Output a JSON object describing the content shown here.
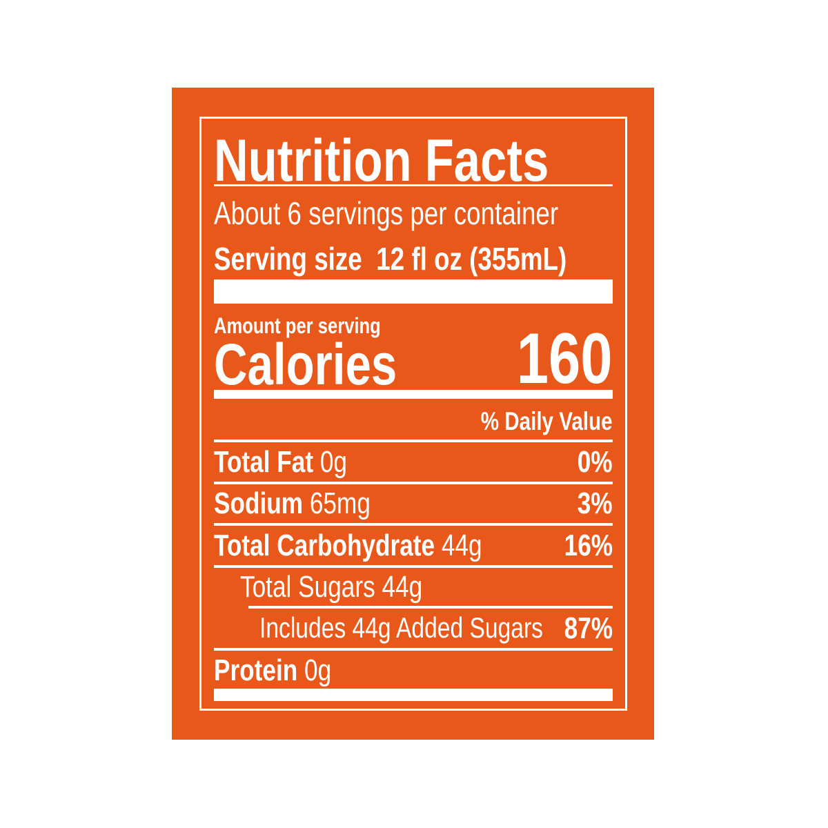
{
  "label": {
    "title": "Nutrition Facts",
    "servings_per_container": "About 6 servings per container",
    "serving_size_label": "Serving size",
    "serving_size_value": "12 fl oz (355mL)",
    "amount_per_serving": "Amount per serving",
    "calories_label": "Calories",
    "calories_value": "160",
    "daily_value_header": "% Daily Value",
    "nutrients": [
      {
        "name": "Total Fat",
        "amount": "0g",
        "dv": "0%"
      },
      {
        "name": "Sodium",
        "amount": "65mg",
        "dv": "3%"
      },
      {
        "name": "Total Carbohydrate",
        "amount": "44g",
        "dv": "16%"
      },
      {
        "name": "Total Sugars 44g",
        "amount": "",
        "dv": ""
      },
      {
        "name": "Includes 44g Added Sugars",
        "amount": "",
        "dv": "87%"
      },
      {
        "name": "Protein",
        "amount": "0g",
        "dv": ""
      }
    ]
  },
  "colors": {
    "background": "#E8581A",
    "text": "#FFFFFF"
  }
}
